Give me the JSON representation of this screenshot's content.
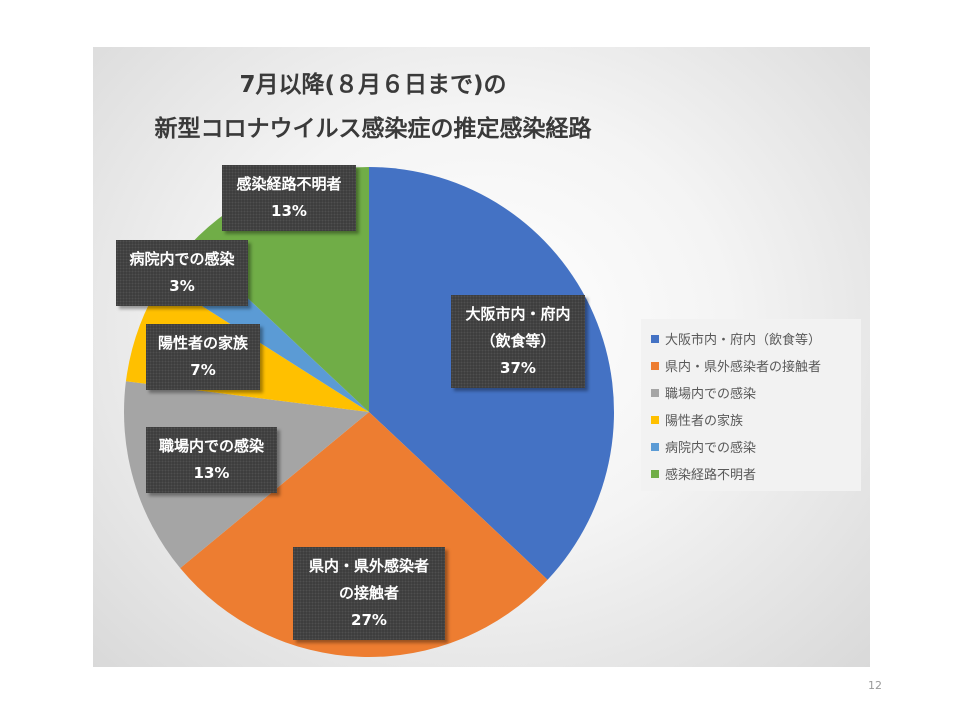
{
  "chart_data": {
    "type": "pie",
    "title_lines": [
      "7月以降(８月６日まで)の",
      "新型コロナウイルス感染症の推定感染経路"
    ],
    "legend_position": "right",
    "slices": [
      {
        "category": "大阪市内・府内（飲食等）",
        "label_lines": [
          "大阪市内・府内",
          "（飲食等）"
        ],
        "value": 37,
        "value_label": "37%",
        "color": "#4472c4"
      },
      {
        "category": "県内・県外感染者の接触者",
        "label_lines": [
          "県内・県外感染者",
          "の接触者"
        ],
        "value": 27,
        "value_label": "27%",
        "color": "#ed7d31"
      },
      {
        "category": "職場内での感染",
        "label_lines": [
          "職場内での感染"
        ],
        "value": 13,
        "value_label": "13%",
        "color": "#a5a5a5"
      },
      {
        "category": "陽性者の家族",
        "label_lines": [
          "陽性者の家族"
        ],
        "value": 7,
        "value_label": "7%",
        "color": "#ffc000"
      },
      {
        "category": "病院内での感染",
        "label_lines": [
          "病院内での感染"
        ],
        "value": 3,
        "value_label": "3%",
        "color": "#5b9bd5"
      },
      {
        "category": "感染経路不明者",
        "label_lines": [
          "感染経路不明者"
        ],
        "value": 13,
        "value_label": "13%",
        "color": "#70ad47"
      }
    ]
  },
  "page_number": "12"
}
